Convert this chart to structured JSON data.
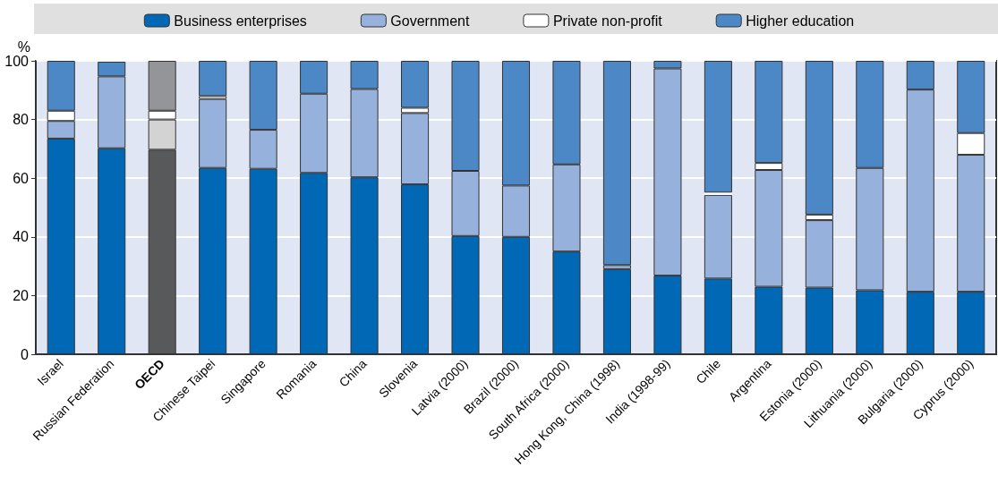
{
  "chart_data": {
    "type": "bar",
    "stacked": true,
    "ylabel": "%",
    "categories": [
      "Israel",
      "Russian Federation",
      "OECD",
      "Chinese Taipei",
      "Singapore",
      "Romania",
      "China",
      "Slovenia",
      "Latvia (2000)",
      "Brazil (2000)",
      "South Africa (2000)",
      "Hong Kong, China (1998)",
      "India (1998-99)",
      "Chile",
      "Argentina",
      "Estonia (2000)",
      "Lithuania (2000)",
      "Bulgaria (2000)",
      "Cyprus (2000)"
    ],
    "series": [
      {
        "name": "Business enterprises",
        "color": "#0068b4",
        "colors": [
          "#0068b4",
          "#0068b4",
          "#58595b",
          "#0068b4",
          "#0068b4",
          "#0068b4",
          "#0068b4",
          "#0068b4",
          "#0068b4",
          "#0068b4",
          "#0068b4",
          "#0068b4",
          "#0068b4",
          "#0068b4",
          "#0068b4",
          "#0068b4",
          "#0068b4",
          "#0068b4",
          "#0068b4"
        ],
        "values": [
          73.5,
          70.2,
          69.7,
          63.5,
          63.2,
          61.8,
          60.3,
          57.9,
          40.3,
          40,
          35,
          29,
          26.8,
          25.8,
          23,
          22.7,
          21.8,
          21.3,
          21.3
        ]
      },
      {
        "name": "Government",
        "color": "#96b2dc",
        "colors": [
          "#96b2dc",
          "#96b2dc",
          "#d3d3d3",
          "#96b2dc",
          "#96b2dc",
          "#96b2dc",
          "#96b2dc",
          "#96b2dc",
          "#96b2dc",
          "#96b2dc",
          "#96b2dc",
          "#96b2dc",
          "#96b2dc",
          "#96b2dc",
          "#96b2dc",
          "#96b2dc",
          "#96b2dc",
          "#96b2dc",
          "#96b2dc"
        ],
        "values": [
          6,
          24.5,
          10.3,
          23.5,
          13.3,
          27,
          30.1,
          24.3,
          22.2,
          17.5,
          29.7,
          1.4,
          70.6,
          28.5,
          39.8,
          23,
          41.7,
          68.9,
          46.7
        ]
      },
      {
        "name": "Private non-profit",
        "color": "#ffffff",
        "values": [
          3.5,
          null,
          3,
          1,
          0,
          0,
          0,
          1.8,
          0,
          0,
          0,
          0,
          0,
          0.8,
          2.4,
          1.9,
          0,
          0,
          7.4
        ]
      },
      {
        "name": "Higher education",
        "color": "#4d88c6",
        "colors": [
          "#4d88c6",
          "#4d88c6",
          "#939598",
          "#4d88c6",
          "#4d88c6",
          "#4d88c6",
          "#4d88c6",
          "#4d88c6",
          "#4d88c6",
          "#4d88c6",
          "#4d88c6",
          "#4d88c6",
          "#4d88c6",
          "#4d88c6",
          "#4d88c6",
          "#4d88c6",
          "#4d88c6",
          "#4d88c6",
          "#4d88c6"
        ],
        "values": [
          17,
          5,
          17,
          12,
          23.5,
          11.2,
          9.6,
          16,
          37.5,
          42.5,
          35.3,
          69.6,
          2.6,
          44.9,
          34.8,
          52.4,
          36.5,
          9.8,
          24.6
        ]
      }
    ],
    "ylim": [
      0,
      100
    ],
    "yticks": [
      0,
      20,
      40,
      60,
      80,
      100
    ],
    "grid": "y",
    "legend": "top"
  }
}
